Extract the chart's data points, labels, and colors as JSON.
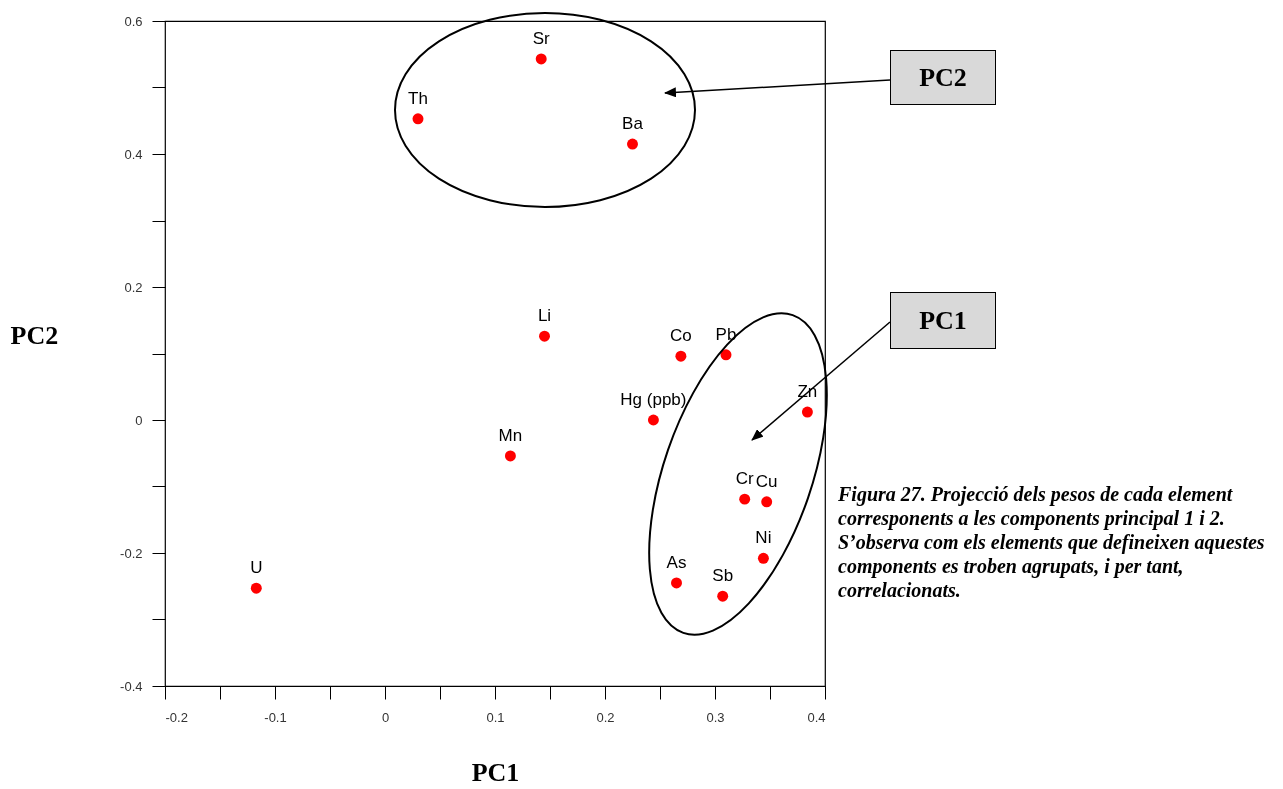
{
  "chart_data": {
    "type": "scatter",
    "xlabel": "PC1",
    "ylabel": "PC2",
    "xlim": [
      -0.2,
      0.4
    ],
    "ylim": [
      -0.4,
      0.6
    ],
    "xticks": [
      -0.2,
      {
        "value": -0.15,
        "label": null
      },
      -0.1,
      {
        "value": -0.05,
        "label": null
      },
      0,
      {
        "value": 0.05,
        "label": null
      },
      0.1,
      {
        "value": 0.15,
        "label": null
      },
      0.2,
      {
        "value": 0.25,
        "label": null
      },
      0.3,
      {
        "value": 0.35,
        "label": null
      },
      0.4
    ],
    "yticks": [
      -0.4,
      {
        "value": -0.3,
        "label": null
      },
      -0.2,
      {
        "value": -0.1,
        "label": null
      },
      0,
      {
        "value": 0.1,
        "label": null
      },
      0.2,
      {
        "value": 0.3,
        "label": null
      },
      0.4,
      {
        "value": 0.5,
        "label": null
      },
      0.6
    ],
    "grid": false,
    "marker": "circle",
    "x": [
      0.142,
      0.03,
      0.225,
      0.145,
      0.269,
      0.31,
      0.384,
      0.244,
      0.114,
      0.327,
      0.347,
      0.344,
      0.265,
      0.307,
      -0.117
    ],
    "series": [
      {
        "color": "#ff0000",
        "values": [
          0.543,
          0.453,
          0.415,
          0.126,
          0.096,
          0.098,
          0.012,
          0.0,
          -0.054,
          -0.119,
          -0.123,
          -0.208,
          -0.245,
          -0.265,
          -0.253
        ]
      }
    ],
    "annotations": [
      "PC2",
      "PC1",
      "Figura 27. Projecció dels pesos de cada element corresponents a les components principal 1 i 2. S’observa com els elements que defineixen aquestes components es troben agrupats, i per tant, correlacionats.",
      {
        "text": "Sr",
        "x": 0.142,
        "y": 0.543
      },
      {
        "text": "Th",
        "x": 0.03,
        "y": 0.453
      },
      {
        "text": "Ba",
        "x": 0.225,
        "y": 0.415
      },
      {
        "text": "Li",
        "x": 0.145,
        "y": 0.126
      },
      {
        "text": "Co",
        "x": 0.269,
        "y": 0.096
      },
      {
        "text": "Pb",
        "x": 0.31,
        "y": 0.098
      },
      {
        "text": "Zn",
        "x": 0.384,
        "y": 0.012
      },
      {
        "text": "Hg (ppb)",
        "x": 0.244,
        "y": 0.0
      },
      {
        "text": "Mn",
        "x": 0.114,
        "y": -0.054
      },
      {
        "text": "Cr",
        "x": 0.327,
        "y": -0.119
      },
      {
        "text": "Cu",
        "x": 0.347,
        "y": -0.123
      },
      {
        "text": "Ni",
        "x": 0.344,
        "y": -0.208
      },
      {
        "text": "As",
        "x": 0.265,
        "y": -0.245
      },
      {
        "text": "Sb",
        "x": 0.307,
        "y": -0.265
      },
      {
        "text": "U",
        "x": -0.117,
        "y": -0.253
      }
    ]
  }
}
